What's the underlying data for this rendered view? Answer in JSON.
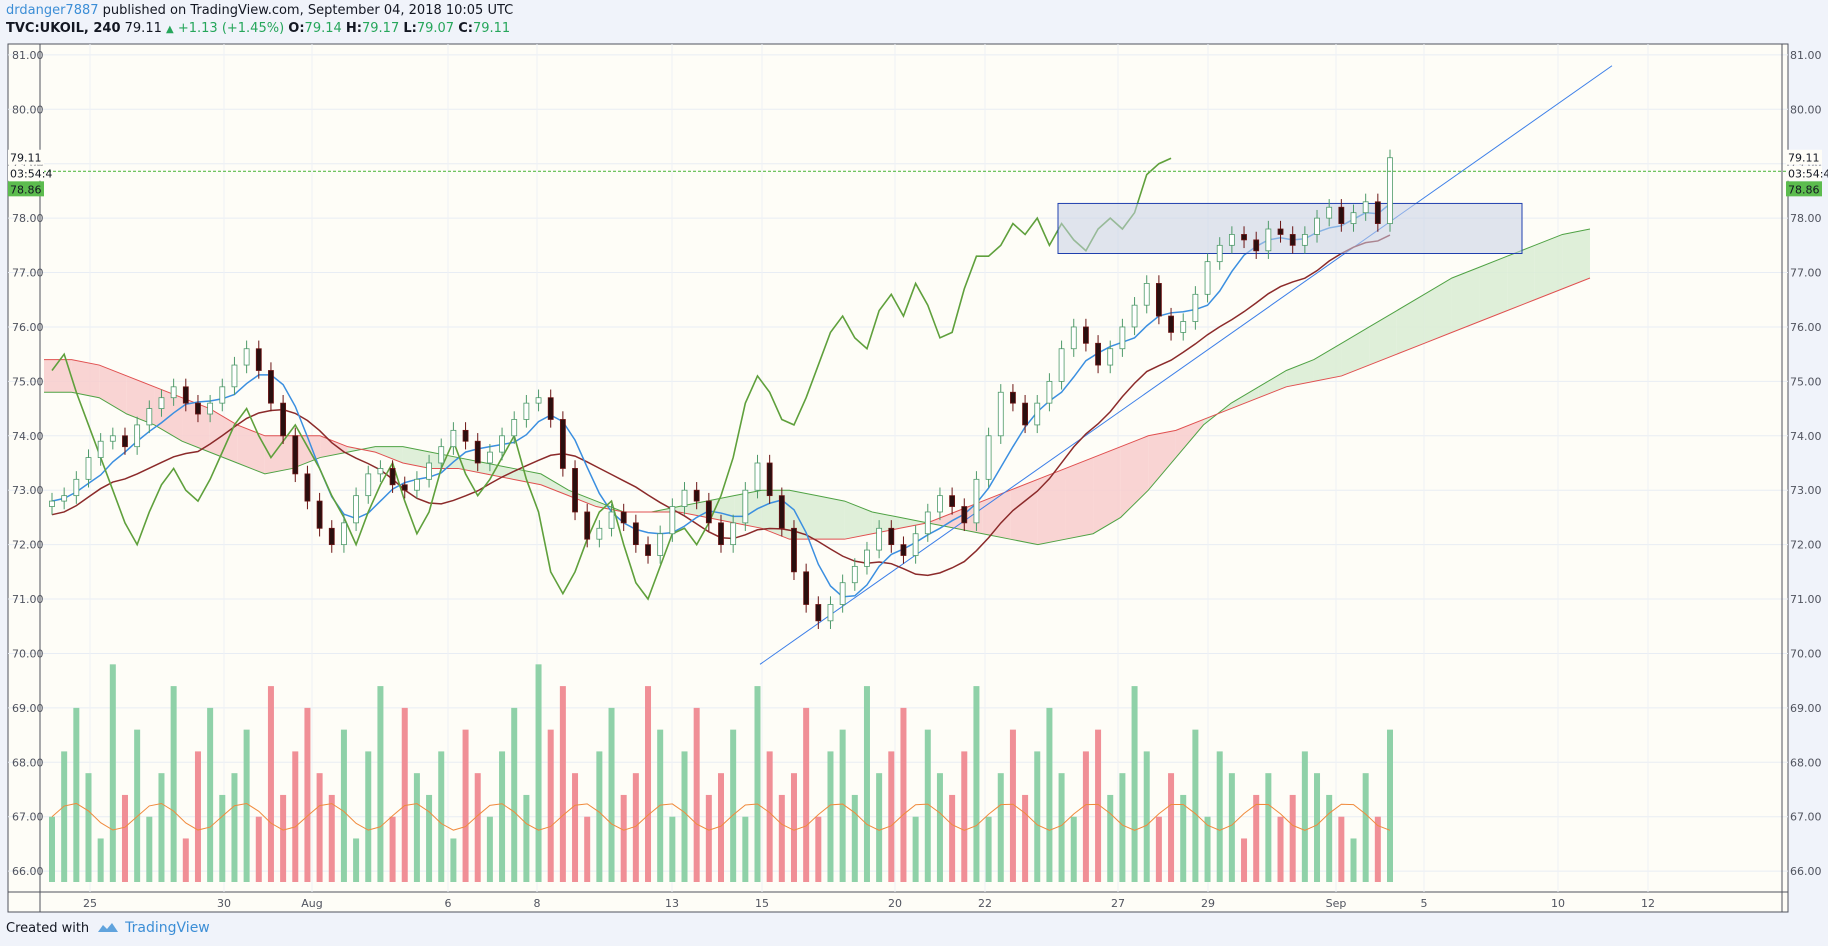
{
  "header": {
    "author": "drdanger7887",
    "published_text": "published on TradingView.com, September 04, 2018 10:05 UTC"
  },
  "ticker": {
    "symbol": "TVC:UKOIL, 240",
    "last": "79.11",
    "change": "+1.13 (+1.45%)",
    "open_label": "O:",
    "open": "79.14",
    "high_label": "H:",
    "high": "79.17",
    "low_label": "L:",
    "low": "79.07",
    "close_label": "C:",
    "close": "79.11"
  },
  "footer": {
    "created_with": "Created with",
    "brand": "TradingView"
  },
  "colors": {
    "up": "#26a65b",
    "bull_candle": "#ffffff",
    "bear_candle": "#2a0f0f",
    "volume_up": "#8fd1a8",
    "volume_down": "#f08f96",
    "kumo_bull": "#d9ecd3",
    "kumo_bear": "#f8cccc",
    "conversion_line": "#3b8fe0",
    "base_line": "#8b2a2a",
    "lagging_span": "#5fa03c",
    "trendline": "#3b7ee8",
    "last_price_line": "#5cbc4e",
    "box": "#1f3fae"
  },
  "chart_data": {
    "type": "candlestick",
    "symbol": "TVC:UKOIL",
    "interval": "240",
    "ylim": [
      65.8,
      81.2
    ],
    "y_ticks": [
      "81.00",
      "80.00",
      "79.00",
      "78.00",
      "77.00",
      "76.00",
      "75.00",
      "74.00",
      "73.00",
      "72.00",
      "71.00",
      "70.00",
      "69.00",
      "68.00",
      "67.00",
      "66.00"
    ],
    "x_ticks": [
      "25",
      "30",
      "Aug",
      "6",
      "8",
      "13",
      "15",
      "20",
      "22",
      "27",
      "29",
      "Sep",
      "5",
      "10",
      "12"
    ],
    "price_labels": {
      "last": "79.11",
      "countdown": "03:54:4",
      "marked": "78.86"
    },
    "close": [
      72.8,
      72.9,
      73.2,
      73.6,
      73.9,
      74.0,
      73.8,
      74.2,
      74.5,
      74.7,
      74.9,
      74.6,
      74.4,
      74.6,
      74.9,
      75.3,
      75.6,
      75.2,
      74.6,
      74.0,
      73.3,
      72.8,
      72.3,
      72.0,
      72.4,
      72.9,
      73.3,
      73.4,
      73.1,
      73.0,
      73.2,
      73.5,
      73.8,
      74.1,
      73.9,
      73.5,
      73.7,
      74.0,
      74.3,
      74.6,
      74.7,
      74.3,
      73.4,
      72.6,
      72.1,
      72.3,
      72.6,
      72.4,
      72.0,
      71.8,
      72.2,
      72.7,
      73.0,
      72.8,
      72.4,
      72.0,
      72.4,
      73.0,
      73.5,
      72.9,
      72.3,
      71.5,
      70.9,
      70.6,
      70.9,
      71.3,
      71.6,
      71.9,
      72.3,
      72.0,
      71.8,
      72.2,
      72.6,
      72.9,
      72.7,
      72.4,
      73.2,
      74.0,
      74.8,
      74.6,
      74.2,
      74.6,
      75.0,
      75.6,
      76.0,
      75.7,
      75.3,
      75.6,
      76.0,
      76.4,
      76.8,
      76.2,
      75.9,
      76.1,
      76.6,
      77.2,
      77.5,
      77.7,
      77.6,
      77.4,
      77.8,
      77.7,
      77.5,
      77.7,
      78.0,
      78.2,
      77.9,
      78.1,
      78.3,
      77.9,
      79.11
    ],
    "lagging_span": [
      75.2,
      75.5,
      74.8,
      74.2,
      73.6,
      73.0,
      72.4,
      72.0,
      72.6,
      73.1,
      73.4,
      73.0,
      72.8,
      73.2,
      73.7,
      74.2,
      74.5,
      74.0,
      73.6,
      73.9,
      74.2,
      73.8,
      73.4,
      72.9,
      72.5,
      72.0,
      72.6,
      73.1,
      73.5,
      72.8,
      72.2,
      72.6,
      73.4,
      73.9,
      73.3,
      72.9,
      73.2,
      73.6,
      74.0,
      73.2,
      72.6,
      71.5,
      71.1,
      71.5,
      72.1,
      72.6,
      72.8,
      72.0,
      71.3,
      71.0,
      71.6,
      72.2,
      72.3,
      72.0,
      72.4,
      72.9,
      73.6,
      74.6,
      75.1,
      74.8,
      74.3,
      74.2,
      74.7,
      75.3,
      75.9,
      76.2,
      75.8,
      75.6,
      76.3,
      76.6,
      76.2,
      76.8,
      76.4,
      75.8,
      75.9,
      76.7,
      77.3,
      77.3,
      77.5,
      77.9,
      77.7,
      78.0,
      77.5,
      77.9,
      77.6,
      77.4,
      77.8,
      78.0,
      77.8,
      78.1,
      78.8,
      79.0,
      79.1
    ],
    "ichimoku_span_a": [
      74.8,
      74.8,
      74.7,
      74.4,
      74.2,
      73.9,
      73.7,
      73.5,
      73.3,
      73.4,
      73.6,
      73.7,
      73.8,
      73.8,
      73.7,
      73.6,
      73.5,
      73.4,
      73.3,
      73.0,
      72.8,
      72.6,
      72.6,
      72.7,
      72.8,
      72.9,
      73.0,
      73.0,
      72.9,
      72.8,
      72.6,
      72.5,
      72.4,
      72.3,
      72.2,
      72.1,
      72.0,
      72.1,
      72.2,
      72.5,
      73.0,
      73.6,
      74.2,
      74.6,
      74.9,
      75.2,
      75.4,
      75.7,
      76.0,
      76.3,
      76.6,
      76.9,
      77.1,
      77.3,
      77.5,
      77.7,
      77.8
    ],
    "ichimoku_span_b": [
      75.4,
      75.4,
      75.3,
      75.1,
      74.9,
      74.7,
      74.5,
      74.2,
      74.0,
      74.0,
      74.0,
      73.8,
      73.7,
      73.5,
      73.4,
      73.4,
      73.3,
      73.2,
      73.1,
      72.9,
      72.7,
      72.6,
      72.6,
      72.6,
      72.5,
      72.4,
      72.3,
      72.1,
      72.1,
      72.1,
      72.2,
      72.3,
      72.4,
      72.6,
      72.8,
      73.0,
      73.2,
      73.4,
      73.6,
      73.8,
      74.0,
      74.1,
      74.3,
      74.5,
      74.7,
      74.9,
      75.0,
      75.1,
      75.3,
      75.5,
      75.7,
      75.9,
      76.1,
      76.3,
      76.5,
      76.7,
      76.9
    ],
    "volume_relative": [
      0.3,
      0.6,
      0.8,
      0.5,
      0.2,
      1.0,
      0.4,
      0.7,
      0.3,
      0.5,
      0.9,
      0.2,
      0.6,
      0.8,
      0.4,
      0.5,
      0.7,
      0.3,
      0.9,
      0.4,
      0.6,
      0.8,
      0.5,
      0.4,
      0.7,
      0.2,
      0.6,
      0.9,
      0.3,
      0.8,
      0.5,
      0.4,
      0.6,
      0.2,
      0.7,
      0.5,
      0.3,
      0.6,
      0.8,
      0.4,
      1.0,
      0.7,
      0.9,
      0.5,
      0.3,
      0.6,
      0.8,
      0.4,
      0.5,
      0.9,
      0.7,
      0.3,
      0.6,
      0.8,
      0.4,
      0.5,
      0.7,
      0.3,
      0.9,
      0.6,
      0.4,
      0.5,
      0.8,
      0.3,
      0.6,
      0.7,
      0.4,
      0.9,
      0.5,
      0.6,
      0.8,
      0.3,
      0.7,
      0.5,
      0.4,
      0.6,
      0.9,
      0.3,
      0.5,
      0.7,
      0.4,
      0.6,
      0.8,
      0.5,
      0.3,
      0.6,
      0.7,
      0.4,
      0.5,
      0.9,
      0.6,
      0.3,
      0.5,
      0.4,
      0.7,
      0.3,
      0.6,
      0.5,
      0.2,
      0.4,
      0.5,
      0.3,
      0.4,
      0.6,
      0.5,
      0.4,
      0.3,
      0.2,
      0.5,
      0.3,
      0.7
    ]
  }
}
